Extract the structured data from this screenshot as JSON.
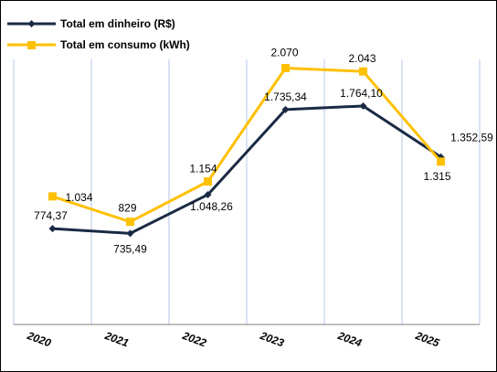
{
  "chart_data": {
    "type": "line",
    "categories": [
      "2020",
      "2021",
      "2022",
      "2023",
      "2024",
      "2025"
    ],
    "series": [
      {
        "name": "Total em dinheiro (R$)",
        "values": [
          774.37,
          735.49,
          1048.26,
          1735.34,
          1764.1,
          1352.59
        ],
        "labels": [
          "774,37",
          "735,49",
          "1.048,26",
          "1.735,34",
          "1.764,10",
          "1.352,59"
        ],
        "color": "#1a2a44",
        "marker": "diamond"
      },
      {
        "name": "Total em consumo (kWh)",
        "values": [
          1034,
          829,
          1154,
          2070,
          2043,
          1315
        ],
        "labels": [
          "1.034",
          "829",
          "1.154",
          "2.070",
          "2.043",
          "1.315"
        ],
        "color": "#ffc000",
        "marker": "square"
      }
    ],
    "ylim": [
      0,
      2150
    ],
    "grid": "vertical",
    "legend_position": "top-left",
    "gridline_color": "#b4c7e7"
  }
}
